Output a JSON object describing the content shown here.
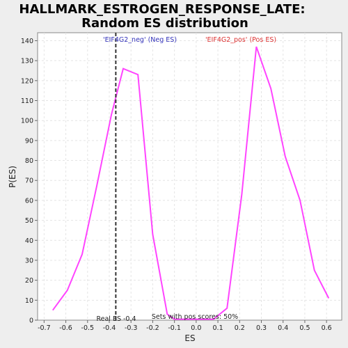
{
  "chart_data": {
    "type": "line",
    "title_line1": "HALLMARK_ESTROGEN_RESPONSE_LATE:",
    "title_line2": "Random ES distribution",
    "xlabel": "ES",
    "ylabel": "P(ES)",
    "xlim": [
      -0.73,
      0.67
    ],
    "ylim": [
      0,
      144
    ],
    "x_ticks": [
      -0.7,
      -0.6,
      -0.5,
      -0.4,
      -0.3,
      -0.2,
      -0.1,
      0.0,
      0.1,
      0.2,
      0.3,
      0.4,
      0.5,
      0.6
    ],
    "x_tick_labels": [
      "-0.7",
      "-0.6",
      "-0.5",
      "-0.4",
      "-0.3",
      "-0.2",
      "-0.1",
      "0.0",
      "0.1",
      "0.2",
      "0.3",
      "0.4",
      "0.5",
      "0.6"
    ],
    "y_ticks": [
      0,
      10,
      20,
      30,
      40,
      50,
      60,
      70,
      80,
      90,
      100,
      110,
      120,
      130,
      140
    ],
    "grid": true,
    "series": [
      {
        "color": "#ff44ff",
        "points": [
          [
            -0.66,
            5
          ],
          [
            -0.593,
            15
          ],
          [
            -0.525,
            33
          ],
          [
            -0.458,
            67
          ],
          [
            -0.39,
            103
          ],
          [
            -0.336,
            126
          ],
          [
            -0.268,
            123
          ],
          [
            -0.2,
            43
          ],
          [
            -0.133,
            3
          ],
          [
            -0.1,
            0.5
          ],
          [
            0.08,
            0.5
          ],
          [
            0.142,
            6
          ],
          [
            0.21,
            63
          ],
          [
            0.277,
            137
          ],
          [
            0.344,
            116
          ],
          [
            0.41,
            82
          ],
          [
            0.478,
            60
          ],
          [
            0.544,
            25
          ],
          [
            0.61,
            11
          ]
        ]
      }
    ],
    "real_es": -0.37,
    "real_es_label": "Real ES -0.4",
    "neg_label": "'EIF4G2_neg' (Neg ES)",
    "pos_label": "'EIF4G2_pos' (Pos ES)",
    "neg_label_color": "#3333bb",
    "pos_label_color": "#dd3333",
    "sets_note": "Sets with pos scores: 50%"
  }
}
